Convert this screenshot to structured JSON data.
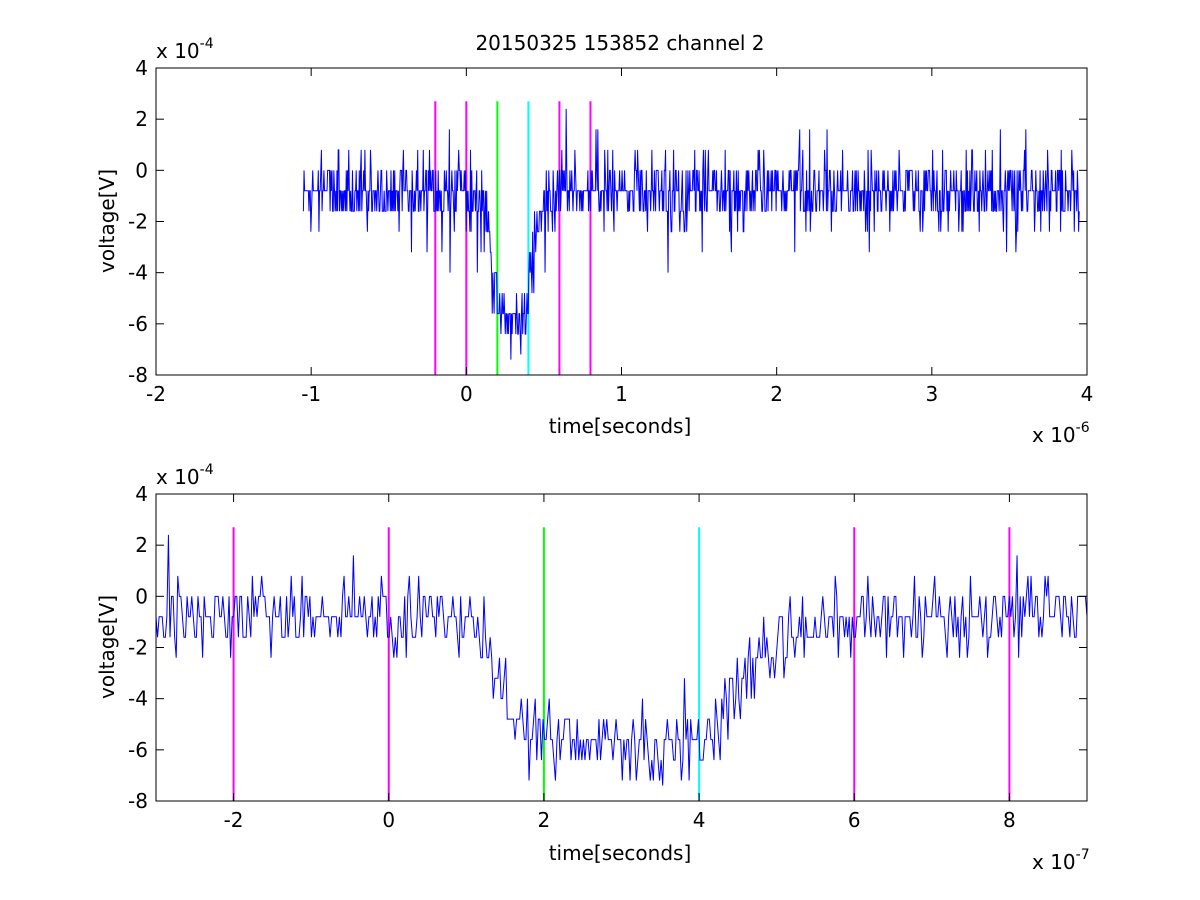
{
  "figure_title": "20150325 153852 channel 2",
  "chart_data": [
    {
      "type": "line",
      "title": "20150325 153852 channel 2",
      "xlabel": "time[seconds]",
      "ylabel": "voltage[V]",
      "x_exponent_label": "x 10",
      "x_exponent_power": "-6",
      "y_exponent_label": "x 10",
      "y_exponent_power": "-4",
      "x_scale": 1e-06,
      "y_scale": 0.0001,
      "xlim": [
        -2e-06,
        4e-06
      ],
      "ylim": [
        -0.0008,
        0.0004
      ],
      "xticks": [
        -2,
        -1,
        0,
        1,
        2,
        3,
        4
      ],
      "yticks": [
        -8,
        -6,
        -4,
        -2,
        0,
        2,
        4
      ],
      "grid": false,
      "series_x_range": [
        -1.05e-06,
        3.95e-06
      ],
      "series_profile": [
        {
          "t": -1.05e-06,
          "v": -8e-05
        },
        {
          "t": 0.0,
          "v": -8e-05
        },
        {
          "t": 1.4e-07,
          "v": -0.00016
        },
        {
          "t": 1.8e-07,
          "v": -0.00045
        },
        {
          "t": 2.2e-07,
          "v": -0.00056
        },
        {
          "t": 3.8e-07,
          "v": -0.00058
        },
        {
          "t": 4.3e-07,
          "v": -0.0003
        },
        {
          "t": 5e-07,
          "v": -0.00012
        },
        {
          "t": 6e-07,
          "v": -8e-05
        },
        {
          "t": 3.95e-06,
          "v": -8e-05
        }
      ],
      "vertical_markers": [
        {
          "x": -2e-07,
          "color": "#ff00ff"
        },
        {
          "x": 0.0,
          "color": "#ff00ff"
        },
        {
          "x": 2e-07,
          "color": "#00ff00"
        },
        {
          "x": 4e-07,
          "color": "#00ffff"
        },
        {
          "x": 6e-07,
          "color": "#ff00ff"
        },
        {
          "x": 8e-07,
          "color": "#ff00ff"
        }
      ],
      "marker_y_range": [
        -0.0008,
        0.00027
      ],
      "line_color": "#0000ff"
    },
    {
      "type": "line",
      "title": "",
      "xlabel": "time[seconds]",
      "ylabel": "voltage[V]",
      "x_exponent_label": "x 10",
      "x_exponent_power": "-7",
      "y_exponent_label": "x 10",
      "y_exponent_power": "-4",
      "x_scale": 1e-07,
      "y_scale": 0.0001,
      "xlim": [
        -3e-07,
        9e-07
      ],
      "ylim": [
        -0.0008,
        0.0004
      ],
      "xticks": [
        -2,
        0,
        2,
        4,
        6,
        8
      ],
      "yticks": [
        -8,
        -6,
        -4,
        -2,
        0,
        2,
        4
      ],
      "grid": false,
      "series_x_range": [
        -3e-07,
        9e-07
      ],
      "series_profile": [
        {
          "t": -3e-07,
          "v": -8e-05
        },
        {
          "t": 1e-07,
          "v": -8e-05
        },
        {
          "t": 1.3e-07,
          "v": -0.0002
        },
        {
          "t": 1.5e-07,
          "v": -0.00045
        },
        {
          "t": 1.9e-07,
          "v": -0.00056
        },
        {
          "t": 2.4e-07,
          "v": -0.00058
        },
        {
          "t": 3.9e-07,
          "v": -0.00058
        },
        {
          "t": 4.3e-07,
          "v": -0.00045
        },
        {
          "t": 4.8e-07,
          "v": -0.00022
        },
        {
          "t": 5.5e-07,
          "v": -9e-05
        },
        {
          "t": 9e-07,
          "v": -6e-05
        }
      ],
      "vertical_markers": [
        {
          "x": -2e-07,
          "color": "#ff00ff"
        },
        {
          "x": 0.0,
          "color": "#ff00ff"
        },
        {
          "x": 2e-07,
          "color": "#00ff00"
        },
        {
          "x": 4e-07,
          "color": "#00ffff"
        },
        {
          "x": 6e-07,
          "color": "#ff00ff"
        },
        {
          "x": 8e-07,
          "color": "#ff00ff"
        }
      ],
      "marker_y_range": [
        -0.0008,
        0.00027
      ],
      "line_color": "#0000ff"
    }
  ]
}
